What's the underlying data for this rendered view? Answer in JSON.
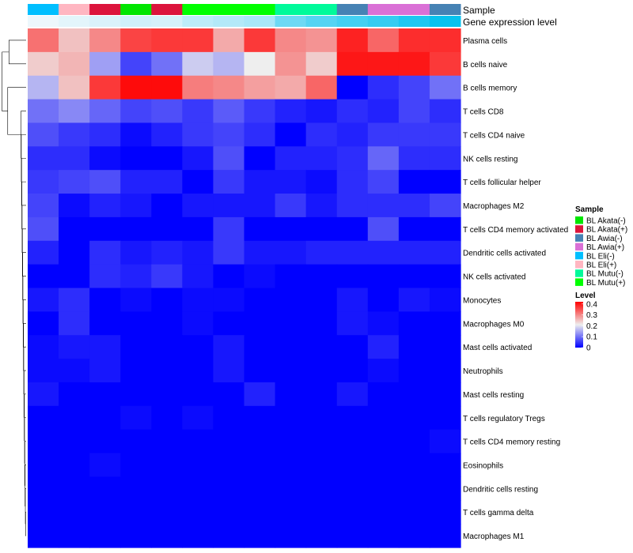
{
  "chart_data": {
    "type": "heatmap",
    "annotation_labels": {
      "sample": "Sample",
      "expression": "Gene expression level"
    },
    "columns": [
      {
        "sample": "BL Eli(-)",
        "expression": 0.02
      },
      {
        "sample": "BL Eli(+)",
        "expression": 0.06
      },
      {
        "sample": "BL Akata(+)",
        "expression": 0.1
      },
      {
        "sample": "BL Akata(-)",
        "expression": 0.14
      },
      {
        "sample": "BL Akata(+)",
        "expression": 0.12
      },
      {
        "sample": "BL Mutu(+)",
        "expression": 0.22
      },
      {
        "sample": "BL Mutu(+)",
        "expression": 0.26
      },
      {
        "sample": "BL Mutu(+)",
        "expression": 0.3
      },
      {
        "sample": "BL Mutu(-)",
        "expression": 0.55
      },
      {
        "sample": "BL Mutu(-)",
        "expression": 0.65
      },
      {
        "sample": "BL Awia(-)",
        "expression": 0.72
      },
      {
        "sample": "BL Awia(+)",
        "expression": 0.78
      },
      {
        "sample": "BL Awia(+)",
        "expression": 0.88
      },
      {
        "sample": "BL Awia(-)",
        "expression": 0.97
      }
    ],
    "rows": [
      "Plasma cells",
      "B cells naive",
      "B cells memory",
      "T cells CD8",
      "T cells CD4 naive",
      "NK cells resting",
      "T cells follicular helper",
      "Macrophages M2",
      "T cells CD4 memory activated",
      "Dendritic cells activated",
      "NK cells activated",
      "Monocytes",
      "Macrophages M0",
      "Mast cells activated",
      "Neutrophils",
      "Mast cells resting",
      "T cells regulatory  Tregs",
      "T cells CD4 memory resting",
      "Eosinophils",
      "Dendritic cells resting",
      "T cells gamma delta",
      "Macrophages M1"
    ],
    "values": [
      [
        0.32,
        0.25,
        0.3,
        0.36,
        0.37,
        0.37,
        0.27,
        0.37,
        0.3,
        0.29,
        0.39,
        0.33,
        0.38,
        0.38
      ],
      [
        0.24,
        0.26,
        0.14,
        0.06,
        0.1,
        0.18,
        0.16,
        0.21,
        0.29,
        0.24,
        0.4,
        0.4,
        0.4,
        0.37
      ],
      [
        0.16,
        0.25,
        0.37,
        0.41,
        0.41,
        0.31,
        0.3,
        0.28,
        0.27,
        0.33,
        0.0,
        0.04,
        0.06,
        0.1
      ],
      [
        0.1,
        0.12,
        0.09,
        0.06,
        0.07,
        0.05,
        0.08,
        0.05,
        0.03,
        0.02,
        0.04,
        0.03,
        0.06,
        0.04
      ],
      [
        0.07,
        0.05,
        0.04,
        0.01,
        0.03,
        0.05,
        0.06,
        0.04,
        0.0,
        0.04,
        0.03,
        0.05,
        0.05,
        0.05
      ],
      [
        0.04,
        0.04,
        0.01,
        0.0,
        0.0,
        0.02,
        0.07,
        0.0,
        0.03,
        0.03,
        0.04,
        0.09,
        0.04,
        0.04
      ],
      [
        0.05,
        0.06,
        0.07,
        0.03,
        0.03,
        0.0,
        0.05,
        0.02,
        0.02,
        0.01,
        0.04,
        0.06,
        0.0,
        0.0
      ],
      [
        0.06,
        0.01,
        0.03,
        0.02,
        0.0,
        0.02,
        0.02,
        0.02,
        0.05,
        0.02,
        0.04,
        0.04,
        0.04,
        0.06
      ],
      [
        0.07,
        0.0,
        0.0,
        0.0,
        0.0,
        0.0,
        0.05,
        0.0,
        0.0,
        0.0,
        0.0,
        0.07,
        0.0,
        0.0
      ],
      [
        0.03,
        0.0,
        0.04,
        0.02,
        0.03,
        0.02,
        0.05,
        0.02,
        0.02,
        0.03,
        0.03,
        0.03,
        0.03,
        0.03
      ],
      [
        0.0,
        0.0,
        0.04,
        0.03,
        0.05,
        0.02,
        0.0,
        0.01,
        0.0,
        0.0,
        0.0,
        0.0,
        0.0,
        0.0
      ],
      [
        0.02,
        0.04,
        0.0,
        0.01,
        0.0,
        0.01,
        0.01,
        0.0,
        0.0,
        0.0,
        0.02,
        0.0,
        0.02,
        0.01
      ],
      [
        0.0,
        0.04,
        0.0,
        0.0,
        0.0,
        0.01,
        0.0,
        0.0,
        0.0,
        0.0,
        0.02,
        0.01,
        0.0,
        0.0
      ],
      [
        0.01,
        0.02,
        0.02,
        0.0,
        0.0,
        0.0,
        0.02,
        0.0,
        0.0,
        0.0,
        0.0,
        0.03,
        0.0,
        0.0
      ],
      [
        0.01,
        0.01,
        0.02,
        0.0,
        0.0,
        0.0,
        0.02,
        0.0,
        0.0,
        0.0,
        0.0,
        0.01,
        0.0,
        0.0
      ],
      [
        0.02,
        0.0,
        0.0,
        0.0,
        0.0,
        0.0,
        0.0,
        0.03,
        0.0,
        0.0,
        0.02,
        0.0,
        0.0,
        0.0
      ],
      [
        0.0,
        0.0,
        0.0,
        0.01,
        0.0,
        0.01,
        0.0,
        0.0,
        0.0,
        0.0,
        0.0,
        0.0,
        0.0,
        0.0
      ],
      [
        0.0,
        0.0,
        0.0,
        0.0,
        0.0,
        0.0,
        0.0,
        0.0,
        0.0,
        0.0,
        0.0,
        0.0,
        0.0,
        0.01
      ],
      [
        0.0,
        0.0,
        0.01,
        0.0,
        0.0,
        0.0,
        0.0,
        0.0,
        0.0,
        0.0,
        0.0,
        0.0,
        0.0,
        0.0
      ],
      [
        0.0,
        0.0,
        0.0,
        0.0,
        0.0,
        0.0,
        0.0,
        0.0,
        0.0,
        0.0,
        0.0,
        0.0,
        0.0,
        0.0
      ],
      [
        0.0,
        0.0,
        0.0,
        0.0,
        0.0,
        0.0,
        0.0,
        0.0,
        0.0,
        0.0,
        0.0,
        0.0,
        0.0,
        0.0
      ],
      [
        0.0,
        0.0,
        0.0,
        0.0,
        0.0,
        0.0,
        0.0,
        0.0,
        0.0,
        0.0,
        0.0,
        0.0,
        0.0,
        0.0
      ]
    ],
    "color_scale": {
      "min": 0,
      "max": 0.42,
      "stops": [
        {
          "value": 0.0,
          "color": "#0000ff"
        },
        {
          "value": 0.21,
          "color": "#eeeeee"
        },
        {
          "value": 0.42,
          "color": "#ff0000"
        }
      ]
    },
    "legend_sample": {
      "title": "Sample",
      "items": [
        {
          "label": "BL Akata(-)",
          "color": "#00e600"
        },
        {
          "label": "BL Akata(+)",
          "color": "#dc143c"
        },
        {
          "label": "BL Awia(-)",
          "color": "#4682b4"
        },
        {
          "label": "BL Awia(+)",
          "color": "#da70d6"
        },
        {
          "label": "BL Eli(-)",
          "color": "#00bfff"
        },
        {
          "label": "BL Eli(+)",
          "color": "#ffb6c1"
        },
        {
          "label": "BL Mutu(-)",
          "color": "#00fa9a"
        },
        {
          "label": "BL Mutu(+)",
          "color": "#00ff00"
        }
      ]
    },
    "legend_level": {
      "title": "Level",
      "ticks": [
        0,
        0.1,
        0.2,
        0.3,
        0.4
      ],
      "tick_labels": [
        "0",
        "0.1",
        "0.2",
        "0.3",
        "0.4"
      ]
    },
    "expression_scale_colors": [
      "#f2f8fc",
      "#00c0ee"
    ]
  }
}
